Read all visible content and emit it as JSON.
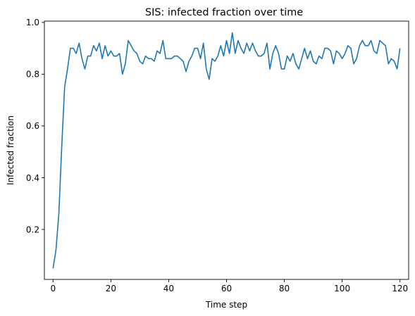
{
  "chart_data": {
    "type": "line",
    "title": "SIS: infected fraction over time",
    "xlabel": "Time step",
    "ylabel": "Infected fraction",
    "xlim": [
      -3,
      123
    ],
    "ylim": [
      0.007,
      1.005
    ],
    "xticks": [
      0,
      20,
      40,
      60,
      80,
      100,
      120
    ],
    "xtick_labels": [
      "0",
      "20",
      "40",
      "60",
      "80",
      "100",
      "120"
    ],
    "yticks": [
      0.2,
      0.4,
      0.6,
      0.8,
      1.0
    ],
    "ytick_labels": [
      "0.2",
      "0.4",
      "0.6",
      "0.8",
      "1.0"
    ],
    "grid": false,
    "series": [
      {
        "color": "#1f77b4",
        "x": [
          0,
          1,
          2,
          3,
          4,
          5,
          6,
          7,
          8,
          9,
          10,
          11,
          12,
          13,
          14,
          15,
          16,
          17,
          18,
          19,
          20,
          21,
          22,
          23,
          24,
          25,
          26,
          27,
          28,
          29,
          30,
          31,
          32,
          33,
          34,
          35,
          36,
          37,
          38,
          39,
          40,
          41,
          42,
          43,
          44,
          45,
          46,
          47,
          48,
          49,
          50,
          51,
          52,
          53,
          54,
          55,
          56,
          57,
          58,
          59,
          60,
          61,
          62,
          63,
          64,
          65,
          66,
          67,
          68,
          69,
          70,
          71,
          72,
          73,
          74,
          75,
          76,
          77,
          78,
          79,
          80,
          81,
          82,
          83,
          84,
          85,
          86,
          87,
          88,
          89,
          90,
          91,
          92,
          93,
          94,
          95,
          96,
          97,
          98,
          99,
          100,
          101,
          102,
          103,
          104,
          105,
          106,
          107,
          108,
          109,
          110,
          111,
          112,
          113,
          114,
          115,
          116,
          117,
          118,
          119,
          120
        ],
        "y": [
          0.05,
          0.12,
          0.26,
          0.52,
          0.75,
          0.82,
          0.9,
          0.9,
          0.88,
          0.92,
          0.86,
          0.82,
          0.87,
          0.87,
          0.91,
          0.89,
          0.92,
          0.86,
          0.91,
          0.87,
          0.89,
          0.87,
          0.87,
          0.88,
          0.8,
          0.84,
          0.93,
          0.91,
          0.89,
          0.88,
          0.85,
          0.84,
          0.87,
          0.86,
          0.86,
          0.85,
          0.89,
          0.88,
          0.93,
          0.86,
          0.86,
          0.86,
          0.87,
          0.87,
          0.86,
          0.85,
          0.81,
          0.85,
          0.87,
          0.9,
          0.9,
          0.86,
          0.92,
          0.82,
          0.78,
          0.86,
          0.85,
          0.87,
          0.91,
          0.87,
          0.93,
          0.88,
          0.96,
          0.88,
          0.93,
          0.9,
          0.88,
          0.92,
          0.89,
          0.92,
          0.89,
          0.87,
          0.87,
          0.88,
          0.92,
          0.82,
          0.88,
          0.91,
          0.88,
          0.82,
          0.82,
          0.87,
          0.85,
          0.88,
          0.84,
          0.82,
          0.86,
          0.9,
          0.86,
          0.89,
          0.85,
          0.84,
          0.87,
          0.86,
          0.9,
          0.9,
          0.89,
          0.84,
          0.89,
          0.88,
          0.86,
          0.88,
          0.91,
          0.9,
          0.84,
          0.86,
          0.91,
          0.93,
          0.91,
          0.91,
          0.93,
          0.89,
          0.88,
          0.93,
          0.92,
          0.91,
          0.84,
          0.86,
          0.85,
          0.82,
          0.9
        ]
      }
    ]
  }
}
